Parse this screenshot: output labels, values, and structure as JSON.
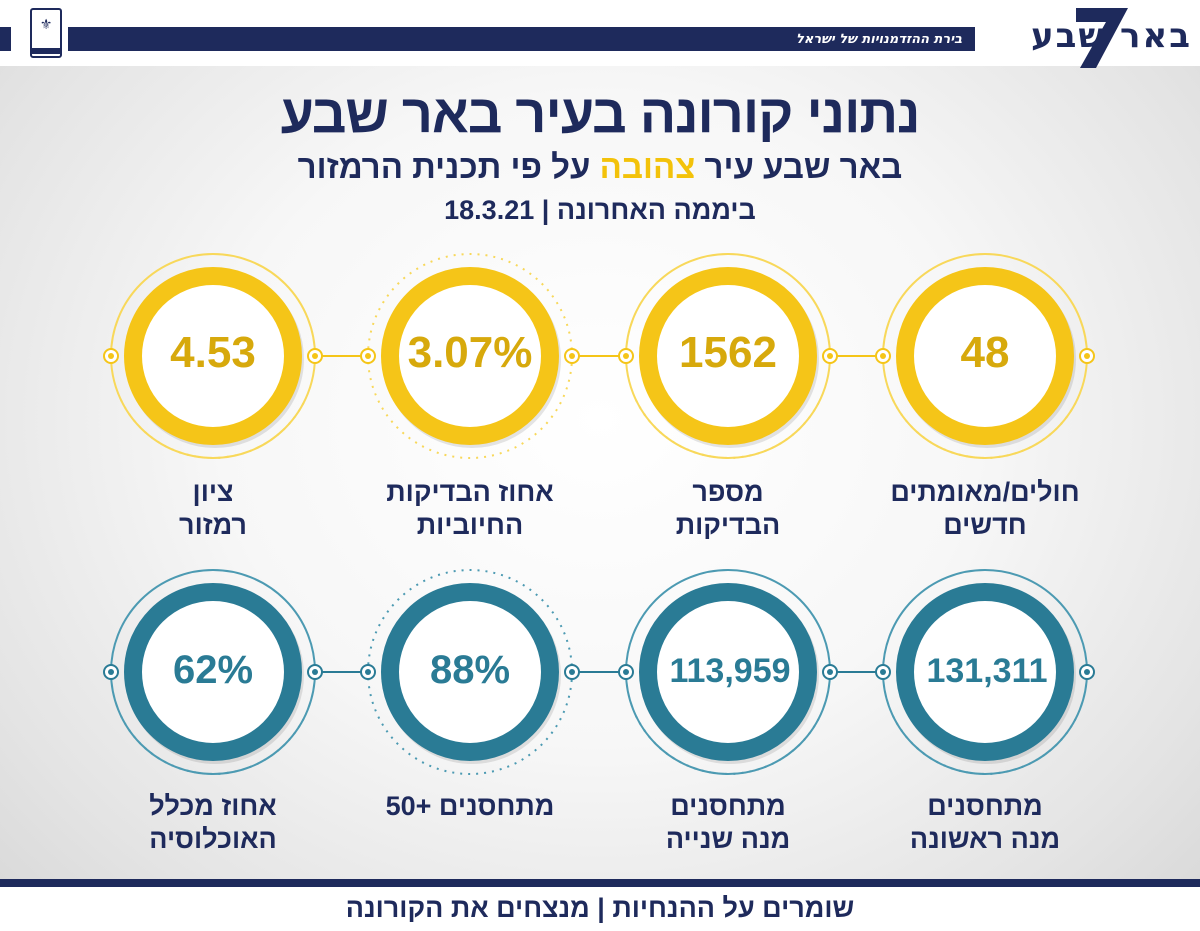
{
  "header": {
    "tagline": "בירת ההזדמנויות של ישראל",
    "logo_text": "באר שבע",
    "emblem_icon": "city-emblem-icon"
  },
  "title": "נתוני קורונה בעיר באר שבע",
  "subtitle": {
    "part1": "באר שבע עיר",
    "highlight": "צהובה",
    "part2": "על פי תכנית הרמזור"
  },
  "dateline": {
    "label": "ביממה האחרונה",
    "separator": "|",
    "date": "18.3.21"
  },
  "colors": {
    "navy": "#1e2a5c",
    "yellow": "#f5c518",
    "teal": "#2a7b95"
  },
  "stats_row1": [
    {
      "value": "48",
      "label_line1": "חולים/מאומתים",
      "label_line2": "חדשים"
    },
    {
      "value": "1562",
      "label_line1": "מספר",
      "label_line2": "הבדיקות"
    },
    {
      "value": "3.07%",
      "label_line1": "אחוז הבדיקות",
      "label_line2": "החיוביות"
    },
    {
      "value": "4.53",
      "label_line1": "ציון",
      "label_line2": "רמזור"
    }
  ],
  "stats_row2": [
    {
      "value": "131,311",
      "label_line1": "מתחסנים",
      "label_line2": "מנה ראשונה"
    },
    {
      "value": "113,959",
      "label_line1": "מתחסנים",
      "label_line2": "מנה שנייה"
    },
    {
      "value": "88%",
      "label_line1": "מתחסנים +50",
      "label_line2": ""
    },
    {
      "value": "62%",
      "label_line1": "אחוז מכלל",
      "label_line2": "האוכלוסיה"
    }
  ],
  "footer": "שומרים על ההנחיות | מנצחים את הקורונה"
}
